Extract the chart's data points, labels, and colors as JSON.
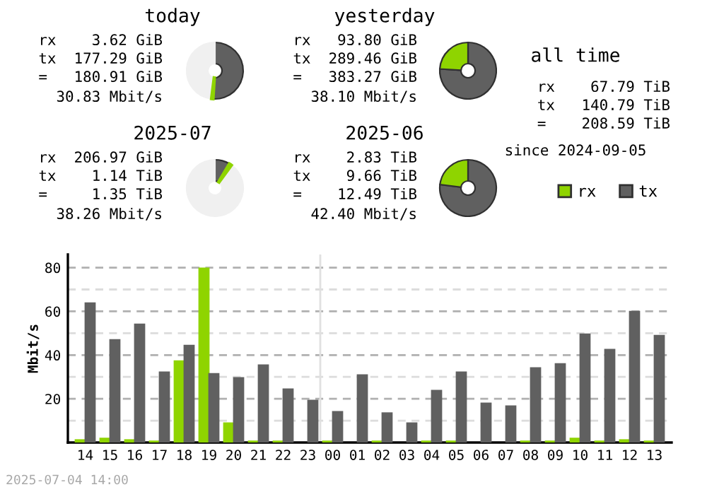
{
  "chart_data": [
    {
      "type": "donut",
      "title": "today",
      "categories": [
        "tx",
        "rx",
        null
      ],
      "values": [
        51,
        1,
        48
      ],
      "colors": [
        "#606060",
        "#8fd400",
        "#f0f0f0"
      ],
      "legend": "right",
      "annotations": [
        "rx    3.62 GiB",
        "tx  177.29 GiB",
        "=   180.91 GiB",
        "30.83 Mbit/s"
      ]
    },
    {
      "type": "donut",
      "title": "yesterday",
      "categories": [
        null,
        null
      ],
      "values": [
        76,
        24
      ],
      "colors": [
        "#606060",
        "#8fd400"
      ],
      "annotations": [
        "rx   93.80 GiB",
        "tx  289.46 GiB",
        "=   383.27 GiB",
        "38.10 Mbit/s"
      ]
    },
    {
      "type": "other",
      "title": "all time",
      "annotations": [
        "rx    67.79 TiB",
        "tx   140.79 TiB",
        "=    208.59 TiB",
        "since 2024-09-05"
      ]
    },
    {
      "type": "donut",
      "title": "2025-07",
      "categories": [
        null,
        null,
        null
      ],
      "values": [
        8.5,
        1.5,
        90
      ],
      "colors": [
        "#606060",
        "#8fd400",
        "#f0f0f0"
      ],
      "annotations": [
        "rx  206.97 GiB",
        "tx    1.14 TiB",
        "=     1.35 TiB",
        "38.26 Mbit/s"
      ]
    },
    {
      "type": "donut",
      "title": "2025-06",
      "categories": [
        null,
        null
      ],
      "values": [
        77,
        23
      ],
      "colors": [
        "#606060",
        "#8fd400"
      ],
      "annotations": [
        "rx    2.83 TiB",
        "tx    9.66 TiB",
        "=    12.49 TiB",
        "42.40 Mbit/s"
      ]
    },
    {
      "type": "bar",
      "ylabel": "Mbit/s",
      "categories": [
        "14",
        "15",
        "16",
        "17",
        "18",
        "19",
        "20",
        "21",
        "22",
        "23",
        "00",
        "01",
        "02",
        "03",
        "04",
        "05",
        "06",
        "07",
        "08",
        "09",
        "10",
        "11",
        "12",
        "13"
      ],
      "series": [
        {
          "color": "#8fd400",
          "values": [
            1.5,
            2.2,
            1.5,
            0.9,
            37.6,
            80,
            9.2,
            0.9,
            0.9,
            0,
            0.9,
            0,
            0.9,
            0,
            0.9,
            0.9,
            0,
            0,
            0.9,
            0.9,
            2.2,
            0.9,
            1.5,
            0.9
          ]
        },
        {
          "color": "#606060",
          "values": [
            64.1,
            47.3,
            54.4,
            32.5,
            44.7,
            31.8,
            29.9,
            35.7,
            24.7,
            19.6,
            14.4,
            31.2,
            13.8,
            9.2,
            24.1,
            32.5,
            18.3,
            17.0,
            34.4,
            36.3,
            49.9,
            42.8,
            60.2,
            49.2
          ]
        }
      ],
      "ylim": [
        0,
        86
      ],
      "yticks": [
        {
          "value": 10,
          "label": null
        },
        20,
        {
          "value": 30,
          "label": null
        },
        40,
        {
          "value": 50,
          "label": null
        },
        60,
        {
          "value": 70,
          "label": null
        },
        80
      ],
      "grid": "y",
      "ref_lines": [
        {
          "axis": "x",
          "value": "00",
          "color": "#e0e0e0"
        }
      ],
      "annotations": [
        "2025-07-04 14:00"
      ]
    }
  ]
}
